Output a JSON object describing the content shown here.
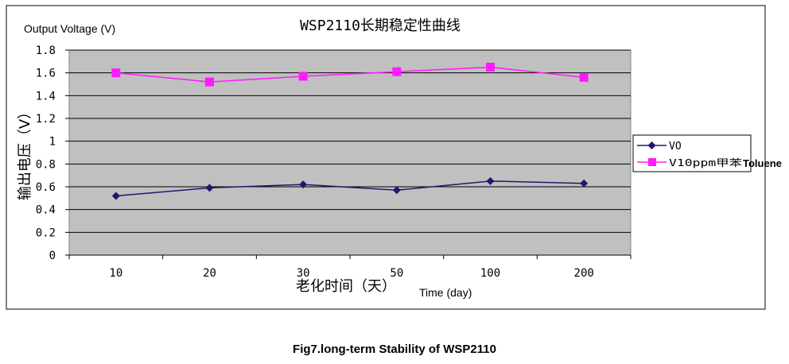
{
  "chart_data": {
    "type": "line",
    "title": "WSP2110长期稳定性曲线",
    "ylabel_en": "Output Voltage (V)",
    "ylabel_cn": "输出电压（V）",
    "xlabel_cn": "老化时间（天）",
    "xlabel_en": "Time (day)",
    "categories": [
      "10",
      "20",
      "30",
      "50",
      "100",
      "200"
    ],
    "y_ticks": [
      "1.8",
      "1.6",
      "1.4",
      "1.2",
      "1",
      "0.8",
      "0.6",
      "0.4",
      "0.2",
      "0"
    ],
    "ylim": [
      0,
      1.8
    ],
    "grid": true,
    "legend_position": "right",
    "series": [
      {
        "name": "VO",
        "legend_label": "VO",
        "marker": "diamond",
        "color": "#1a1a6e",
        "values": [
          0.52,
          0.59,
          0.62,
          0.57,
          0.65,
          0.63
        ]
      },
      {
        "name": "V10ppm甲苯 Toluene",
        "legend_label": "V10ppm甲苯",
        "legend_suffix": "Toluene",
        "marker": "square",
        "color": "#ff1aff",
        "values": [
          1.6,
          1.52,
          1.57,
          1.61,
          1.65,
          1.56
        ]
      }
    ]
  },
  "caption": "Fig7.long-term Stability of WSP2110"
}
